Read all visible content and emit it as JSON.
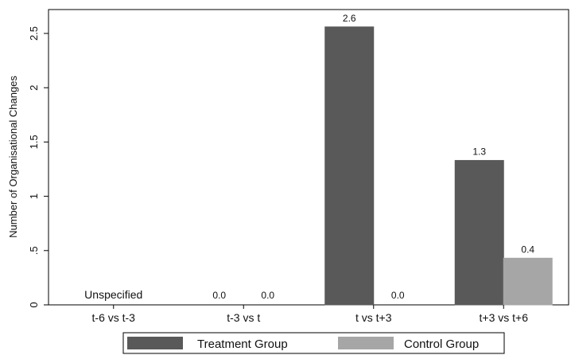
{
  "chart_data": {
    "type": "bar",
    "title": "",
    "xlabel": "",
    "ylabel": "Number of Organisational Changes",
    "ylim": [
      0,
      2.72
    ],
    "yticks": [
      0,
      0.5,
      1,
      1.5,
      2,
      2.5
    ],
    "ytick_labels": [
      "0",
      ".5",
      "1",
      "1.5",
      "2",
      "2.5"
    ],
    "categories": [
      "t-6 vs t-3",
      "t-3 vs t",
      "t vs t+3",
      "t+3 vs t+6"
    ],
    "series": [
      {
        "name": "Treatment Group",
        "color": "#595959",
        "values": [
          null,
          0.0,
          2.56,
          1.33
        ],
        "labels": [
          "",
          "0.0",
          "2.6",
          "1.3"
        ]
      },
      {
        "name": "Control Group",
        "color": "#a6a6a6",
        "values": [
          null,
          0.0,
          0.0,
          0.43
        ],
        "labels": [
          "",
          "0.0",
          "0.0",
          "0.4"
        ]
      }
    ],
    "annotations": [
      {
        "category": "t-6 vs t-3",
        "text": "Unspecified"
      }
    ],
    "grid": false,
    "legend_position": "bottom"
  }
}
